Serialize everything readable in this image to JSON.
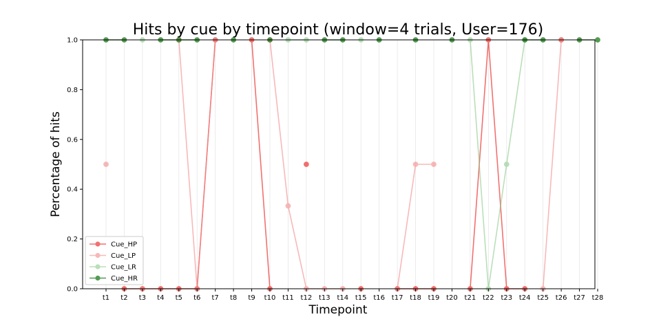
{
  "chart_data": {
    "type": "line",
    "title": "Hits by cue by timepoint (window=4 trials, User=176)",
    "xlabel": "Timepoint",
    "ylabel": "Percentage of hits",
    "ylim": [
      0.0,
      1.0
    ],
    "yticks": [
      "0.0",
      "0.2",
      "0.4",
      "0.6",
      "0.8",
      "1.0"
    ],
    "grid": "vertical-only",
    "legend_position": "lower-left",
    "categories": [
      "t1",
      "t2",
      "t3",
      "t4",
      "t5",
      "t6",
      "t7",
      "t8",
      "t9",
      "t10",
      "t11",
      "t12",
      "t13",
      "t14",
      "t15",
      "t16",
      "t17",
      "t18",
      "t19",
      "t20",
      "t21",
      "t22",
      "t23",
      "t24",
      "t25",
      "t26",
      "t27",
      "t28"
    ],
    "series": [
      {
        "name": "Cue_HP",
        "color": "#e8130f",
        "opacity": 0.6,
        "values": [
          null,
          0.0,
          0.0,
          0.0,
          0.0,
          0.0,
          1.0,
          null,
          1.0,
          0.0,
          null,
          0.5,
          null,
          null,
          0.0,
          null,
          0.0,
          0.0,
          0.0,
          null,
          0.0,
          1.0,
          0.0,
          0.0,
          null,
          1.0,
          null,
          null
        ]
      },
      {
        "name": "Cue_LP",
        "color": "#f28a8a",
        "opacity": 0.6,
        "values": [
          0.5,
          null,
          0.0,
          null,
          1.0,
          0.0,
          1.0,
          null,
          null,
          1.0,
          0.333,
          0.0,
          0.0,
          0.0,
          null,
          null,
          0.0,
          0.5,
          0.5,
          null,
          null,
          null,
          null,
          null,
          0.0,
          1.0,
          null,
          null
        ]
      },
      {
        "name": "Cue_LR",
        "color": "#8cc98c",
        "opacity": 0.6,
        "values": [
          null,
          null,
          1.0,
          null,
          null,
          null,
          null,
          null,
          null,
          null,
          1.0,
          1.0,
          null,
          null,
          1.0,
          null,
          null,
          null,
          null,
          null,
          1.0,
          0.0,
          0.5,
          1.0,
          null,
          null,
          null,
          null
        ]
      },
      {
        "name": "Cue_HR",
        "color": "#1a7a1a",
        "opacity": 0.75,
        "values": [
          1.0,
          1.0,
          null,
          1.0,
          1.0,
          1.0,
          null,
          1.0,
          null,
          1.0,
          null,
          null,
          1.0,
          1.0,
          null,
          1.0,
          null,
          1.0,
          null,
          1.0,
          null,
          null,
          null,
          1.0,
          1.0,
          null,
          1.0,
          1.0
        ]
      }
    ]
  }
}
